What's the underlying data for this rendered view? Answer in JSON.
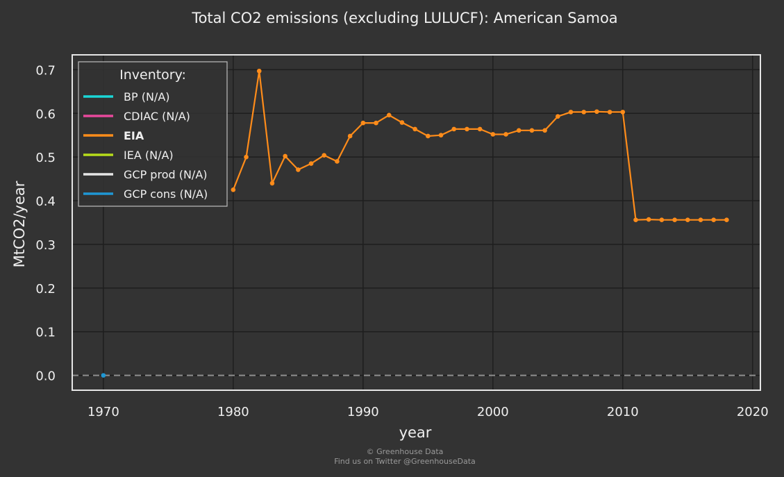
{
  "chart_data": {
    "type": "line",
    "title": "Total CO2 emissions (excluding LULUCF): American Samoa",
    "xlabel": "year",
    "ylabel": "MtCO2/year",
    "xlim": [
      1967.6,
      2020.6
    ],
    "ylim": [
      -0.034,
      0.734
    ],
    "x_ticks": [
      "1970",
      "1980",
      "1990",
      "2000",
      "2010",
      "2020"
    ],
    "y_ticks": [
      "0.0",
      "0.1",
      "0.2",
      "0.3",
      "0.4",
      "0.5",
      "0.6",
      "0.7"
    ],
    "grid": true,
    "zero_line": {
      "value": 0,
      "style": "dashed",
      "color": "#8f8f8f"
    },
    "legend": {
      "title": "Inventory:",
      "placement": "top-left",
      "entries": [
        {
          "label": "BP (N/A)",
          "color": "#1ad6d6",
          "bold": false
        },
        {
          "label": "CDIAC (N/A)",
          "color": "#e8489b",
          "bold": false
        },
        {
          "label": "EIA",
          "color": "#ff8c1a",
          "bold": true
        },
        {
          "label": "IEA (N/A)",
          "color": "#b6dc1a",
          "bold": false
        },
        {
          "label": "GCP prod (N/A)",
          "color": "#e6e6e6",
          "bold": false
        },
        {
          "label": "GCP cons (N/A)",
          "color": "#1f97d4",
          "bold": false
        }
      ]
    },
    "series": [
      {
        "name": "EIA",
        "color": "#ff8c1a",
        "x": [
          1980,
          1981,
          1982,
          1983,
          1984,
          1985,
          1986,
          1987,
          1988,
          1989,
          1990,
          1991,
          1992,
          1993,
          1994,
          1995,
          1996,
          1997,
          1998,
          1999,
          2000,
          2001,
          2002,
          2003,
          2004,
          2005,
          2006,
          2007,
          2008,
          2009,
          2010,
          2011,
          2012,
          2013,
          2014,
          2015,
          2016,
          2017,
          2018
        ],
        "values": [
          0.425,
          0.5,
          0.697,
          0.44,
          0.502,
          0.471,
          0.485,
          0.504,
          0.49,
          0.548,
          0.578,
          0.578,
          0.596,
          0.579,
          0.564,
          0.548,
          0.55,
          0.564,
          0.564,
          0.564,
          0.552,
          0.552,
          0.561,
          0.561,
          0.561,
          0.593,
          0.603,
          0.603,
          0.604,
          0.603,
          0.603,
          0.356,
          0.357,
          0.356,
          0.356,
          0.356,
          0.356,
          0.356,
          0.356
        ]
      },
      {
        "name": "GCP cons (N/A)",
        "color": "#1f97d4",
        "x": [
          1970
        ],
        "values": [
          0.0
        ]
      }
    ]
  },
  "footer": {
    "line1": "© Greenhouse Data",
    "line2": "Find us on Twitter @GreenhouseData"
  }
}
